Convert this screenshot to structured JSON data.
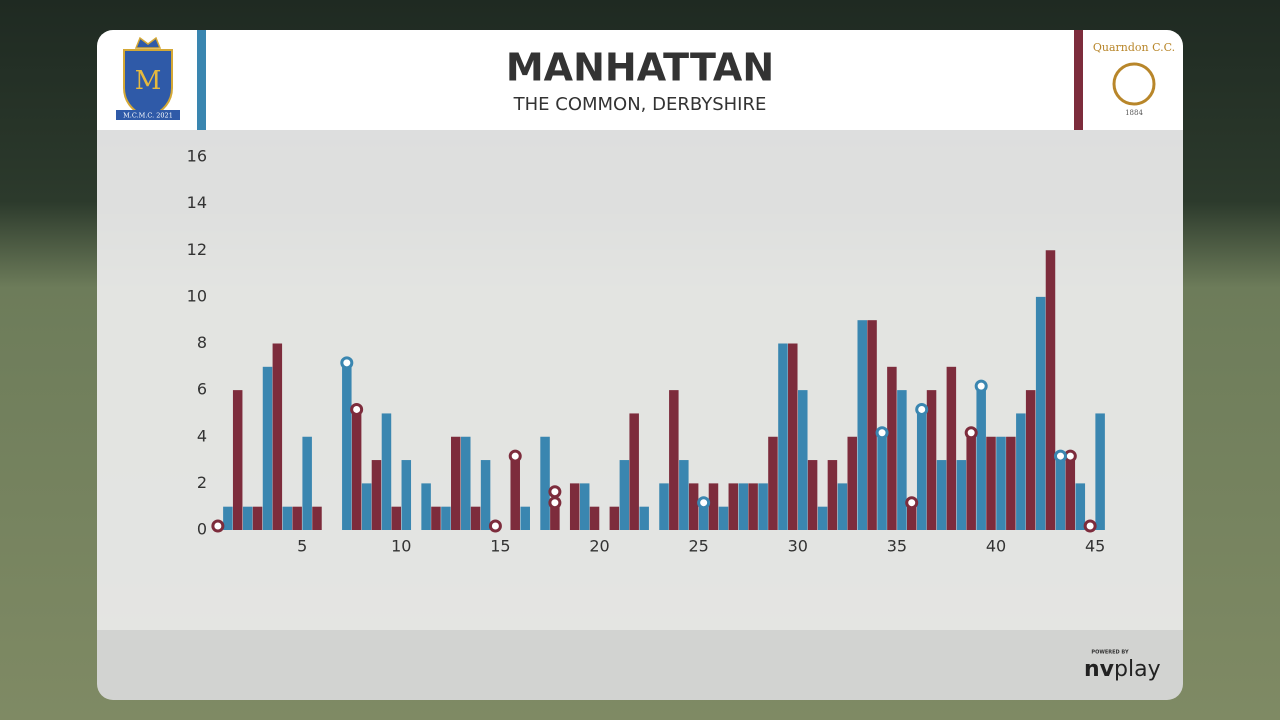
{
  "header": {
    "title": "MANHATTAN",
    "subtitle": "THE COMMON, DERBYSHIRE",
    "left_logo_text": "M.C.M.C. 2021",
    "right_logo_text": "Quarndon C.C.",
    "right_logo_year": "1884"
  },
  "footer": {
    "powered_by": "POWERED BY",
    "brand_bold": "nv",
    "brand_light": "play"
  },
  "chart_data": {
    "type": "bar",
    "x": [
      1,
      2,
      3,
      4,
      5,
      6,
      7,
      8,
      9,
      10,
      11,
      12,
      13,
      14,
      15,
      16,
      17,
      18,
      19,
      20,
      21,
      22,
      23,
      24,
      25,
      26,
      27,
      28,
      29,
      30,
      31,
      32,
      33,
      34,
      35,
      36,
      37,
      38,
      39,
      40,
      41,
      42,
      43,
      44,
      45
    ],
    "xlim": [
      0.25,
      45.75
    ],
    "xticks": [
      5,
      10,
      15,
      20,
      25,
      30,
      35,
      40,
      45
    ],
    "ylim": [
      0,
      16
    ],
    "yticks": [
      0,
      2,
      4,
      6,
      8,
      10,
      12,
      14,
      16
    ],
    "series": [
      {
        "color": "#7d2c3c",
        "values": [
          0,
          6,
          1,
          8,
          1,
          1,
          0,
          5,
          3,
          1,
          0,
          1,
          4,
          1,
          0,
          3,
          0,
          1,
          2,
          1,
          1,
          5,
          0,
          6,
          2,
          2,
          2,
          2,
          4,
          8,
          3,
          3,
          4,
          9,
          7,
          1,
          6,
          7,
          4,
          4,
          4,
          6,
          12,
          3,
          0
        ],
        "wickets": [
          1,
          0,
          0,
          0,
          0,
          0,
          0,
          1,
          0,
          0,
          0,
          0,
          0,
          0,
          1,
          1,
          0,
          2,
          0,
          0,
          0,
          0,
          0,
          0,
          0,
          0,
          0,
          0,
          0,
          0,
          0,
          0,
          0,
          0,
          0,
          1,
          0,
          0,
          1,
          0,
          0,
          0,
          0,
          1,
          1
        ]
      },
      {
        "color": "#3a86b0",
        "values": [
          1,
          1,
          7,
          1,
          4,
          0,
          7,
          2,
          5,
          3,
          2,
          1,
          4,
          3,
          0,
          1,
          4,
          0,
          2,
          0,
          3,
          1,
          2,
          3,
          1,
          1,
          2,
          2,
          8,
          6,
          1,
          2,
          9,
          4,
          6,
          5,
          3,
          3,
          6,
          4,
          5,
          10,
          3,
          2,
          5
        ],
        "wickets": [
          0,
          0,
          0,
          0,
          0,
          0,
          1,
          0,
          0,
          0,
          0,
          0,
          0,
          0,
          0,
          0,
          0,
          0,
          0,
          0,
          0,
          0,
          0,
          0,
          1,
          0,
          0,
          0,
          0,
          0,
          0,
          0,
          0,
          1,
          0,
          1,
          0,
          0,
          1,
          0,
          0,
          0,
          1,
          0,
          0
        ]
      }
    ]
  }
}
